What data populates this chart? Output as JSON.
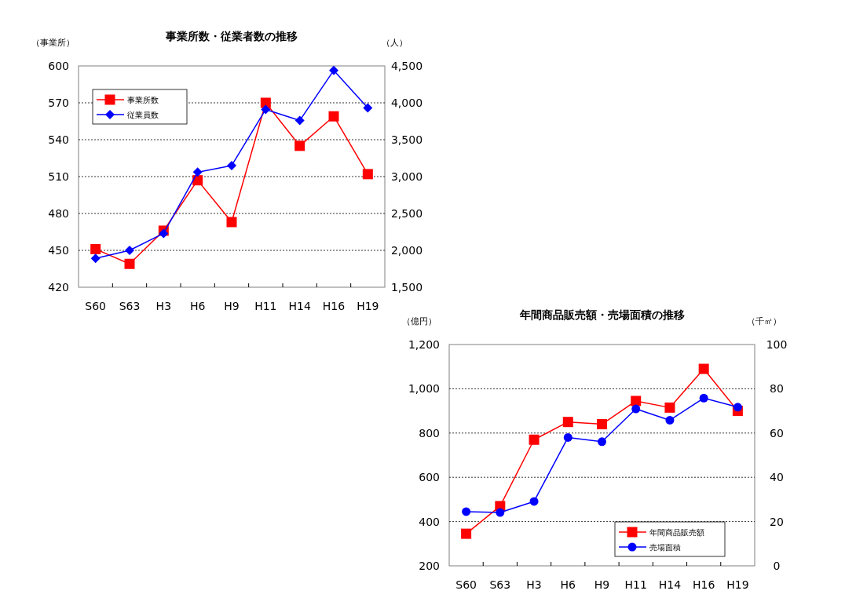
{
  "chart_data": [
    {
      "type": "line",
      "title": "事業所数・従業者数の推移",
      "ylabel": "（事業所）",
      "y2label": "（人）",
      "categories": [
        "S60",
        "S63",
        "H3",
        "H6",
        "H9",
        "H11",
        "H14",
        "H16",
        "H19"
      ],
      "series": [
        {
          "name": "事業所数",
          "color": "#ff0000",
          "marker": "square",
          "values": [
            451,
            439,
            466,
            507,
            473,
            570,
            535,
            559,
            512
          ]
        },
        {
          "name": "従業員数",
          "color": "#0000ff",
          "marker": "diamond",
          "axis": "y2",
          "values": [
            1890,
            2000,
            2230,
            3060,
            3150,
            3910,
            3760,
            4440,
            3930
          ]
        }
      ],
      "ylim": [
        420,
        600
      ],
      "yticks": [
        420,
        450,
        480,
        510,
        540,
        570,
        600
      ],
      "y2lim": [
        1500,
        4500
      ],
      "y2ticks": [
        {
          "value": 1500,
          "label": "1,500"
        },
        {
          "value": 2000,
          "label": "2,000"
        },
        {
          "value": 2500,
          "label": "2,500"
        },
        {
          "value": 3000,
          "label": "3,000"
        },
        {
          "value": 3500,
          "label": "3,500"
        },
        {
          "value": 4000,
          "label": "4,000"
        },
        {
          "value": 4500,
          "label": "4,500"
        }
      ],
      "grid": "y",
      "legend": "top left",
      "line_style": "solid"
    },
    {
      "type": "line",
      "title": "年間商品販売額・売場面積の推移",
      "ylabel": "（億円）",
      "y2label": "（千㎡）",
      "categories": [
        "S60",
        "S63",
        "H3",
        "H6",
        "H9",
        "H11",
        "H14",
        "H16",
        "H19"
      ],
      "series": [
        {
          "name": "年間商品販売額",
          "color": "#ff0000",
          "marker": "square",
          "values": [
            345,
            470,
            770,
            850,
            840,
            945,
            915,
            1090,
            900
          ]
        },
        {
          "name": "売場面積",
          "color": "#0000ff",
          "marker": "circle",
          "axis": "y2",
          "values": [
            24.5,
            24.1,
            29.1,
            58.0,
            56.1,
            70.9,
            65.8,
            75.8,
            71.7
          ]
        }
      ],
      "ylim": [
        200,
        1200
      ],
      "yticks": [
        200,
        400,
        600,
        800,
        {
          "value": 1000,
          "label": "1,000"
        },
        {
          "value": 1200,
          "label": "1,200"
        }
      ],
      "y2lim": [
        0,
        100
      ],
      "y2ticks": [
        0,
        20,
        40,
        60,
        80,
        100
      ],
      "grid": "y",
      "legend": "bottom right",
      "line_style": "solid"
    }
  ]
}
